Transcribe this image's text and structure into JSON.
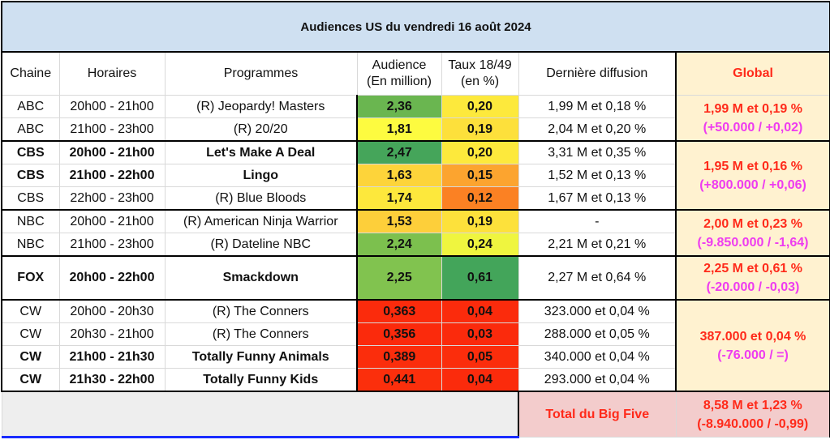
{
  "title": "Audiences US du vendredi 16 août 2024",
  "headers": {
    "chaine": "Chaine",
    "horaires": "Horaires",
    "programmes": "Programmes",
    "audience_1": "Audience",
    "audience_2": "(En million)",
    "taux_1": "Taux 18/49",
    "taux_2": "(en %)",
    "derniere": "Dernière diffusion",
    "global": "Global"
  },
  "rows": [
    {
      "chaine": "ABC",
      "horaires": "20h00 - 21h00",
      "programme": "(R) Jeopardy! Masters",
      "audience": "2,36",
      "taux": "0,20",
      "derniere": "1,99 M et 0,18 %",
      "bold": false,
      "aud_color": "#6ab650",
      "taux_color": "#fde93c"
    },
    {
      "chaine": "ABC",
      "horaires": "21h00 - 23h00",
      "programme": "(R) 20/20",
      "audience": "1,81",
      "taux": "0,19",
      "derniere": "2,04 M et 0,20 %",
      "bold": false,
      "aud_color": "#fdfb40",
      "taux_color": "#fde03b"
    },
    {
      "chaine": "CBS",
      "horaires": "20h00 - 21h00",
      "programme": "Let's Make A Deal",
      "audience": "2,47",
      "taux": "0,20",
      "derniere": "3,31 M et 0,35 %",
      "bold": true,
      "aud_color": "#45a55a",
      "taux_color": "#fde93c"
    },
    {
      "chaine": "CBS",
      "horaires": "21h00 - 22h00",
      "programme": "Lingo",
      "audience": "1,63",
      "taux": "0,15",
      "derniere": "1,52 M et 0,13 %",
      "bold": true,
      "aud_color": "#fdd43a",
      "taux_color": "#fca42f"
    },
    {
      "chaine": "CBS",
      "horaires": "22h00 - 23h00",
      "programme": "(R) Blue Bloods",
      "audience": "1,74",
      "taux": "0,12",
      "derniere": "1,67 M et 0,13 %",
      "bold": false,
      "aud_color": "#fde83c",
      "taux_color": "#fb8123"
    },
    {
      "chaine": "NBC",
      "horaires": "20h00 - 21h00",
      "programme": "(R) American Ninja Warrior",
      "audience": "1,53",
      "taux": "0,19",
      "derniere": "-",
      "bold": false,
      "aud_color": "#fdcf3a",
      "taux_color": "#fde13b"
    },
    {
      "chaine": "NBC",
      "horaires": "21h00 - 23h00",
      "programme": "(R) Dateline NBC",
      "audience": "2,24",
      "taux": "0,24",
      "derniere": "2,21 M et 0,21 %",
      "bold": false,
      "aud_color": "#7cc04e",
      "taux_color": "#eff53f"
    },
    {
      "chaine": "FOX",
      "horaires": "20h00 - 22h00",
      "programme": "Smackdown",
      "audience": "2,25",
      "taux": "0,61",
      "derniere": "2,27 M et 0,64 %",
      "bold": true,
      "aud_color": "#81c34f",
      "taux_color": "#43a55a"
    },
    {
      "chaine": "CW",
      "horaires": "20h00 - 20h30",
      "programme": "(R) The Conners",
      "audience": "0,363",
      "taux": "0,04",
      "derniere": "323.000 et 0,04 %",
      "bold": false,
      "aud_color": "#fb2b0c",
      "taux_color": "#fb2b0c"
    },
    {
      "chaine": "CW",
      "horaires": "20h30 - 21h00",
      "programme": "(R) The Conners",
      "audience": "0,356",
      "taux": "0,03",
      "derniere": "288.000 et 0,05 %",
      "bold": false,
      "aud_color": "#fb2a0c",
      "taux_color": "#fb2a0c"
    },
    {
      "chaine": "CW",
      "horaires": "21h00 - 21h30",
      "programme": "Totally Funny Animals",
      "audience": "0,389",
      "taux": "0,05",
      "derniere": "340.000 et 0,04 %",
      "bold": true,
      "aud_color": "#fb2d0c",
      "taux_color": "#fb2d0c"
    },
    {
      "chaine": "CW",
      "horaires": "21h30 - 22h00",
      "programme": "Totally Funny Kids",
      "audience": "0,441",
      "taux": "0,04",
      "derniere": "293.000 et 0,04 %",
      "bold": true,
      "aud_color": "#fb2f0c",
      "taux_color": "#fb2b0c"
    }
  ],
  "global": [
    {
      "total": "1,99 M et 0,19 %",
      "diff": "(+50.000 / +0,02)"
    },
    {
      "total": "1,95 M et 0,16 %",
      "diff": "(+800.000 / +0,06)"
    },
    {
      "total": "2,00 M et 0,23 %",
      "diff": "(-9.850.000 / -1,64)"
    },
    {
      "total": "2,25 M et 0,61 %",
      "diff": "(-20.000 / -0,03)"
    },
    {
      "total": "387.000 et 0,04 %",
      "diff": "(-76.000 / =)"
    }
  ],
  "big_five": {
    "label": "Total du Big Five",
    "total": "8,58 M et 1,23 %",
    "diff": "(-8.940.000 / -0,99)"
  }
}
